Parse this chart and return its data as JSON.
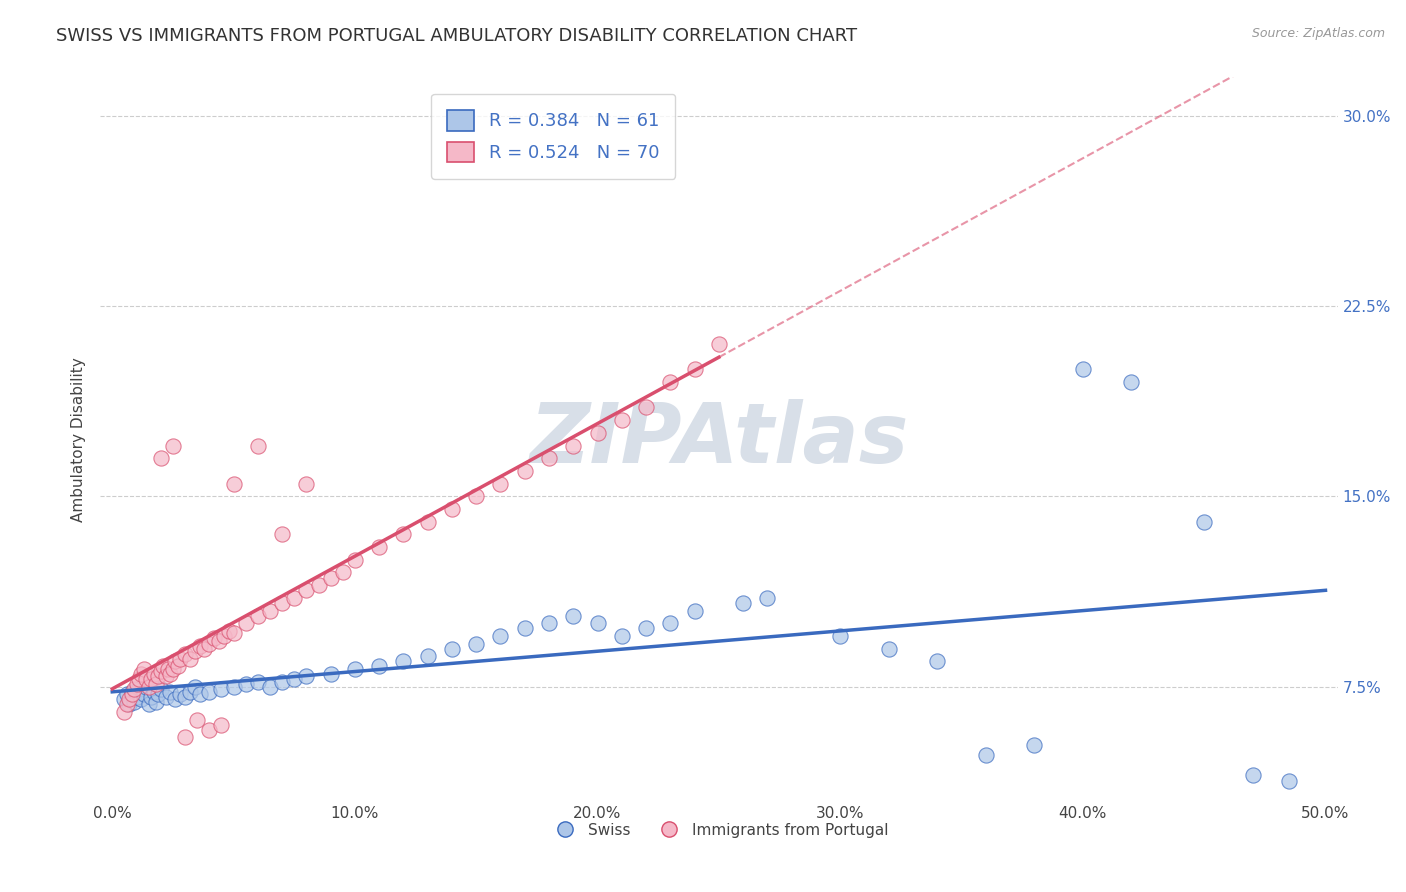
{
  "title": "SWISS VS IMMIGRANTS FROM PORTUGAL AMBULATORY DISABILITY CORRELATION CHART",
  "source_text": "Source: ZipAtlas.com",
  "ylabel": "Ambulatory Disability",
  "x_ticks": [
    0.0,
    0.1,
    0.2,
    0.3,
    0.4,
    0.5
  ],
  "x_tick_labels": [
    "0.0%",
    "10.0%",
    "20.0%",
    "30.0%",
    "40.0%",
    "50.0%"
  ],
  "y_ticks": [
    0.075,
    0.15,
    0.225,
    0.3
  ],
  "y_tick_labels": [
    "7.5%",
    "15.0%",
    "22.5%",
    "30.0%"
  ],
  "xlim": [
    -0.005,
    0.505
  ],
  "ylim": [
    0.03,
    0.315
  ],
  "swiss_r": 0.384,
  "swiss_n": 61,
  "portugal_r": 0.524,
  "portugal_n": 70,
  "swiss_color": "#adc6e8",
  "portugal_color": "#f5b8c8",
  "swiss_line_color": "#3a6abf",
  "portugal_line_color": "#d94f6e",
  "swiss_x": [
    0.005,
    0.006,
    0.007,
    0.008,
    0.009,
    0.01,
    0.011,
    0.012,
    0.013,
    0.014,
    0.015,
    0.016,
    0.017,
    0.018,
    0.019,
    0.02,
    0.022,
    0.024,
    0.026,
    0.028,
    0.03,
    0.032,
    0.034,
    0.036,
    0.04,
    0.045,
    0.05,
    0.055,
    0.06,
    0.065,
    0.07,
    0.075,
    0.08,
    0.09,
    0.1,
    0.11,
    0.12,
    0.13,
    0.14,
    0.15,
    0.16,
    0.17,
    0.18,
    0.19,
    0.2,
    0.21,
    0.22,
    0.23,
    0.24,
    0.26,
    0.27,
    0.3,
    0.32,
    0.34,
    0.36,
    0.38,
    0.4,
    0.42,
    0.45,
    0.47,
    0.485
  ],
  "swiss_y": [
    0.07,
    0.072,
    0.068,
    0.073,
    0.069,
    0.071,
    0.074,
    0.07,
    0.072,
    0.075,
    0.068,
    0.071,
    0.073,
    0.069,
    0.072,
    0.074,
    0.071,
    0.073,
    0.07,
    0.072,
    0.071,
    0.073,
    0.075,
    0.072,
    0.073,
    0.074,
    0.075,
    0.076,
    0.077,
    0.075,
    0.077,
    0.078,
    0.079,
    0.08,
    0.082,
    0.083,
    0.085,
    0.087,
    0.09,
    0.092,
    0.095,
    0.098,
    0.1,
    0.103,
    0.1,
    0.095,
    0.098,
    0.1,
    0.105,
    0.108,
    0.11,
    0.095,
    0.09,
    0.085,
    0.048,
    0.052,
    0.2,
    0.195,
    0.14,
    0.04,
    0.038
  ],
  "portugal_x": [
    0.005,
    0.006,
    0.007,
    0.008,
    0.009,
    0.01,
    0.011,
    0.012,
    0.013,
    0.014,
    0.015,
    0.016,
    0.017,
    0.018,
    0.019,
    0.02,
    0.021,
    0.022,
    0.023,
    0.024,
    0.025,
    0.026,
    0.027,
    0.028,
    0.03,
    0.032,
    0.034,
    0.036,
    0.038,
    0.04,
    0.042,
    0.044,
    0.046,
    0.048,
    0.05,
    0.055,
    0.06,
    0.065,
    0.07,
    0.075,
    0.08,
    0.085,
    0.09,
    0.095,
    0.1,
    0.11,
    0.12,
    0.13,
    0.14,
    0.15,
    0.16,
    0.17,
    0.18,
    0.19,
    0.2,
    0.21,
    0.22,
    0.23,
    0.24,
    0.25,
    0.05,
    0.06,
    0.07,
    0.08,
    0.02,
    0.025,
    0.03,
    0.035,
    0.04,
    0.045
  ],
  "portugal_y": [
    0.065,
    0.068,
    0.07,
    0.072,
    0.074,
    0.076,
    0.078,
    0.08,
    0.082,
    0.078,
    0.075,
    0.078,
    0.08,
    0.076,
    0.079,
    0.081,
    0.083,
    0.079,
    0.082,
    0.08,
    0.082,
    0.085,
    0.083,
    0.086,
    0.088,
    0.086,
    0.089,
    0.091,
    0.09,
    0.092,
    0.094,
    0.093,
    0.095,
    0.097,
    0.096,
    0.1,
    0.103,
    0.105,
    0.108,
    0.11,
    0.113,
    0.115,
    0.118,
    0.12,
    0.125,
    0.13,
    0.135,
    0.14,
    0.145,
    0.15,
    0.155,
    0.16,
    0.165,
    0.17,
    0.175,
    0.18,
    0.185,
    0.195,
    0.2,
    0.21,
    0.155,
    0.17,
    0.135,
    0.155,
    0.165,
    0.17,
    0.055,
    0.062,
    0.058,
    0.06
  ],
  "watermark_text": "ZIPAtlas",
  "watermark_color": "#d8dfe8",
  "background_color": "#ffffff",
  "grid_color": "#c8c8c8",
  "title_fontsize": 13,
  "axis_label_fontsize": 11,
  "tick_fontsize": 11,
  "legend_fontsize": 13
}
